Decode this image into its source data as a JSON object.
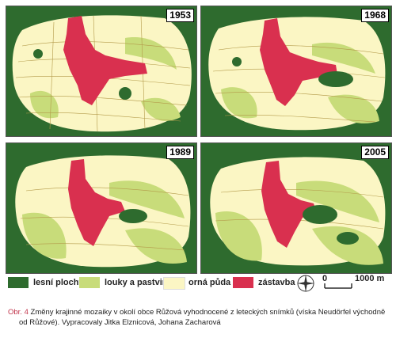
{
  "panels": [
    {
      "year": "1953"
    },
    {
      "year": "1968"
    },
    {
      "year": "1989"
    },
    {
      "year": "2005"
    }
  ],
  "legend": [
    {
      "label": "lesní plochy",
      "color": "#2e6b2e"
    },
    {
      "label": "louky a pastviny",
      "color": "#c8dc7a"
    },
    {
      "label": "orná půda",
      "color": "#fbf6c4"
    },
    {
      "label": "zástavba",
      "color": "#d9304f"
    }
  ],
  "scale": {
    "start": "0",
    "end": "1000 m"
  },
  "caption": {
    "label": "Obr. 4",
    "line1": "Změny krajinné mozaiky v okolí obce Růžová vyhodnocené z leteckých snímků (víska Neudörfel východně",
    "line2": "od Růžové).    Vypracovaly Jitka Elznicová, Johana Zacharová"
  },
  "colors": {
    "forest": "#2e6b2e",
    "meadow": "#c8dc7a",
    "arable": "#fbf6c4",
    "built": "#d9304f"
  }
}
